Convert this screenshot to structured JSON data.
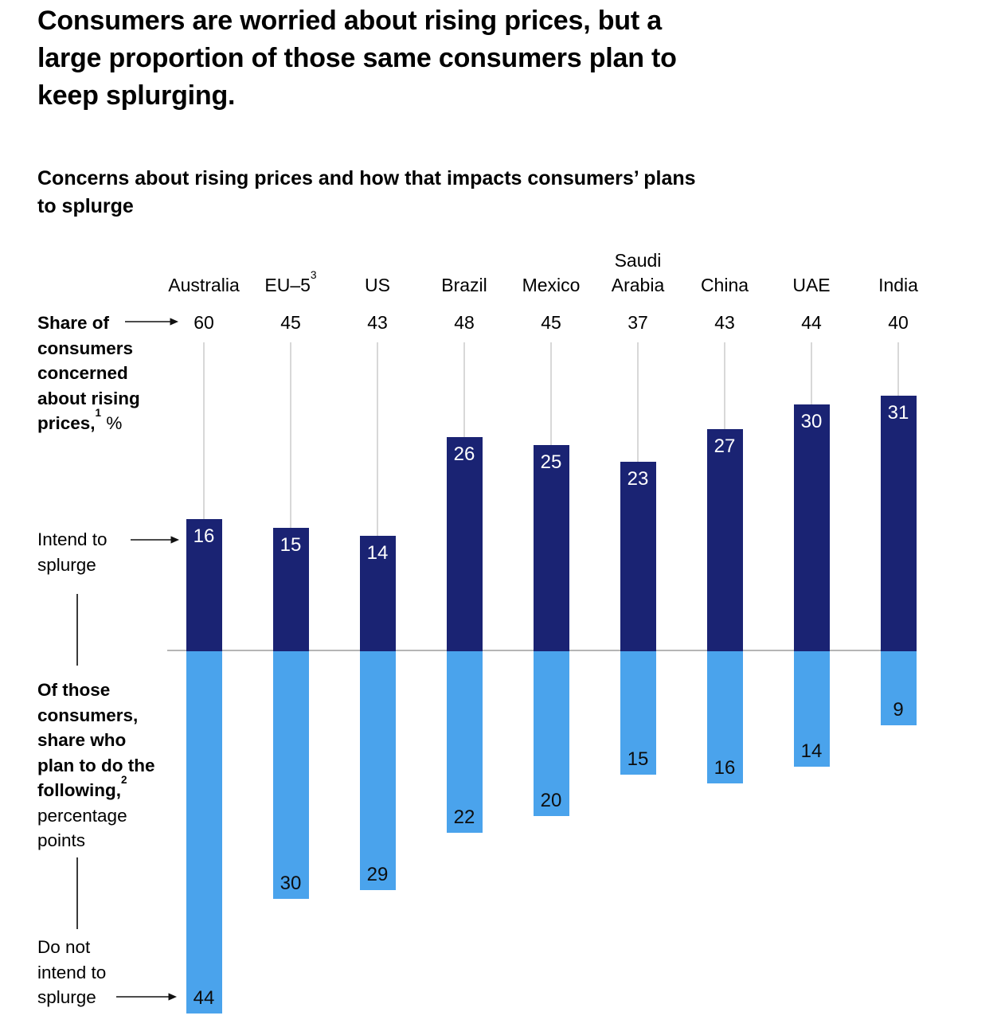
{
  "chart_data": {
    "type": "bar",
    "variant": "diverging-vertical",
    "title": "Consumers are worried about rising prices, but a\nlarge proportion of those same consumers plan to\nkeep splurging.",
    "subtitle": "Concerns about rising prices and how that impacts consumers’ plans\nto splurge",
    "categories": [
      {
        "label": "Australia",
        "sup": null
      },
      {
        "label": "EU–5",
        "sup": "3"
      },
      {
        "label": "US",
        "sup": null
      },
      {
        "label": "Brazil",
        "sup": null
      },
      {
        "label": "Mexico",
        "sup": null
      },
      {
        "label": "Saudi Arabia",
        "sup": null
      },
      {
        "label": "China",
        "sup": null
      },
      {
        "label": "UAE",
        "sup": null
      },
      {
        "label": "India",
        "sup": null
      }
    ],
    "series": [
      {
        "name": "Share of consumers concerned about rising prices, %",
        "values": [
          60,
          45,
          43,
          48,
          45,
          37,
          43,
          44,
          40
        ]
      },
      {
        "name": "Intend to splurge",
        "values": [
          16,
          15,
          14,
          26,
          25,
          23,
          27,
          30,
          31
        ]
      },
      {
        "name": "Do not intend to splurge",
        "values": [
          44,
          30,
          29,
          22,
          20,
          15,
          16,
          14,
          9
        ]
      }
    ],
    "baseline_value": 0,
    "grid": false,
    "legend_position": "left-annotations",
    "annotations": {
      "concern_label": {
        "bold": "Share of\nconsumers\nconcerned\nabout rising\nprices,",
        "sup": "1",
        "rest": " %"
      },
      "intend_label": "Intend to\nsplurge",
      "of_those_label": {
        "bold": "Of those\nconsumers,\nshare who\nplan to do the\nfollowing,",
        "sup": "2",
        "rest": "\npercentage\npoints"
      },
      "do_not_label": "Do not\nintend to\nsplurge"
    },
    "icons": {
      "pointer": "arrow-right"
    },
    "colors": {
      "intend_bar": "#1a2373",
      "do_not_bar": "#4aa3ec",
      "axis_line": "#b5b5b5",
      "drop_line": "#d8d8d8",
      "connector_line": "#3a3a3a",
      "text": "#000000",
      "bar_label_on_dark": "#ffffff"
    }
  }
}
